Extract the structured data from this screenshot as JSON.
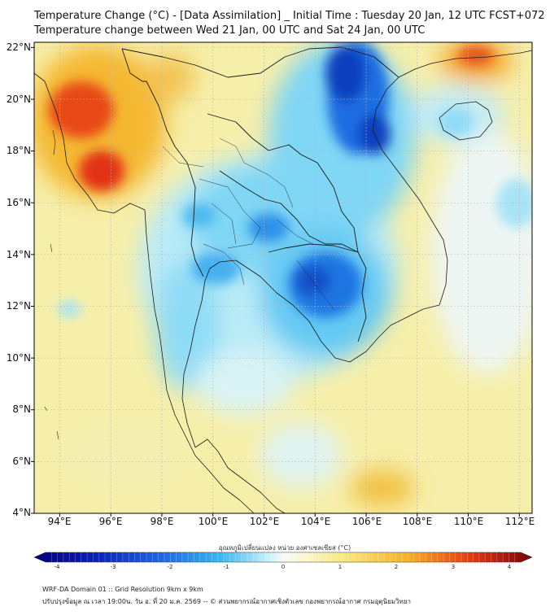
{
  "title": {
    "line1": "Temperature Change (°C) - [Data Assimilation] _ Initial Time : Tuesday 20 Jan, 12 UTC FCST+072",
    "line2": "Temperature change between Wed 21 Jan, 00 UTC and Sat 24 Jan, 00 UTC"
  },
  "axes": {
    "lat_labels": [
      "22°N",
      "20°N",
      "18°N",
      "16°N",
      "14°N",
      "12°N",
      "10°N",
      "8°N",
      "6°N",
      "4°N"
    ],
    "lon_labels": [
      "94°E",
      "96°E",
      "98°E",
      "100°E",
      "102°E",
      "104°E",
      "106°E",
      "108°E",
      "110°E",
      "112°E"
    ],
    "lat_range": [
      4,
      22.2
    ],
    "lon_range": [
      93,
      112.5
    ]
  },
  "colorbar": {
    "title": "อุณหภูมิเปลี่ยนแปลง หน่วย องศาเซลเซียส (°C)",
    "ticks": [
      "-4",
      "-3",
      "-2",
      "-1",
      "0",
      "1",
      "2",
      "3",
      "4"
    ],
    "range": [
      -4,
      4
    ]
  },
  "footer": {
    "line1": "WRF-DA Domain 01 :: Grid Resolution 9km x 9km",
    "line2": "ปรับปรุงข้อมูล ณ เวลา 19:00น. วัน อ. ที่ 20 ม.ค. 2569 -- © ส่วนพยากรณ์อากาศเชิงตัวเลข กองพยากรณ์อากาศ กรมอุตุนิยมวิทยา"
  },
  "colors": {
    "cold_deep": "#0a2a9a",
    "cold": "#1f7fe6",
    "cool": "#6fd2f5",
    "neutral": "#f2f7ef",
    "warm": "#f8eb9a",
    "hot": "#f0a020",
    "very_hot": "#d01010"
  }
}
